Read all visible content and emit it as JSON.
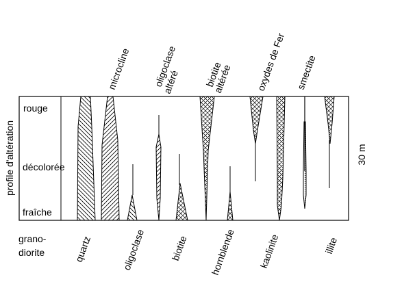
{
  "axis": {
    "ylabel": "profile d'altération",
    "levels": [
      "rouge",
      "décolorée",
      "fraîche"
    ],
    "scale_label": "30 m"
  },
  "rock": {
    "line1": "grano-",
    "line2": "diorite"
  },
  "top_labels": [
    {
      "key": "microcline",
      "lines": [
        "microcline"
      ]
    },
    {
      "key": "oligoclase-altere",
      "lines": [
        "oligoclase",
        "altéré"
      ]
    },
    {
      "key": "biotite-alteree",
      "lines": [
        "biotite",
        "altérée"
      ]
    },
    {
      "key": "oxydes-de-fer",
      "lines": [
        "oxydes de Fer"
      ]
    },
    {
      "key": "smectite",
      "lines": [
        "smectite"
      ]
    }
  ],
  "bottom_labels": [
    {
      "key": "quartz",
      "text": "quartz"
    },
    {
      "key": "oligoclase",
      "text": "oligoclase"
    },
    {
      "key": "biotite",
      "text": "biotite"
    },
    {
      "key": "hornblende",
      "text": "hornblende"
    },
    {
      "key": "kaolinite",
      "text": "kaolinite"
    },
    {
      "key": "illite",
      "text": "illite"
    }
  ],
  "mineral_pattern": {
    "quartz": "hatch-down",
    "microcline": "hatch-up",
    "oligoclase": "hatch-down",
    "oligoclase-altere": "hatch-up",
    "biotite": "crosshatch",
    "biotite-alteree": "crosshatch",
    "hornblende": "crosshatch",
    "oxydes-de-fer": "crosshatch",
    "kaolinite": "crosshatch",
    "smectite": "dots",
    "illite": "crosshatch"
  },
  "colors": {
    "ink": "#000000",
    "background": "#ffffff"
  }
}
